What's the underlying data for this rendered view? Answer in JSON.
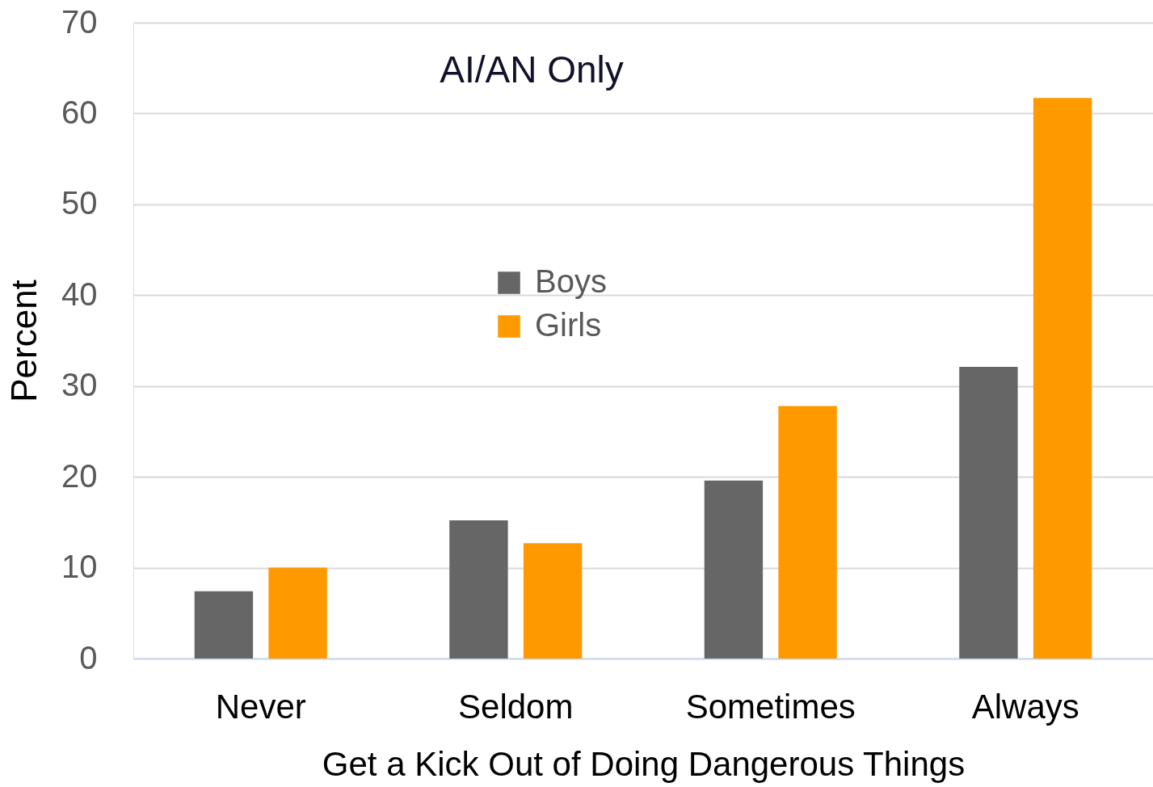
{
  "chart_data": {
    "type": "bar",
    "title": "AI/AN Only",
    "xlabel": "Get a Kick Out of Doing Dangerous Things",
    "ylabel": "Percent",
    "categories": [
      "Never",
      "Seldom",
      "Sometimes",
      "Always"
    ],
    "series": [
      {
        "name": "Boys",
        "color": "#666666",
        "values": [
          7.4,
          15.2,
          19.6,
          32.1
        ]
      },
      {
        "name": "Girls",
        "color": "#ff9900",
        "values": [
          10.0,
          12.7,
          27.8,
          61.7
        ]
      }
    ],
    "ylim": [
      0,
      70
    ],
    "yticks": [
      0,
      10,
      20,
      30,
      40,
      50,
      60,
      70
    ],
    "grid": "y",
    "legend": "center"
  }
}
